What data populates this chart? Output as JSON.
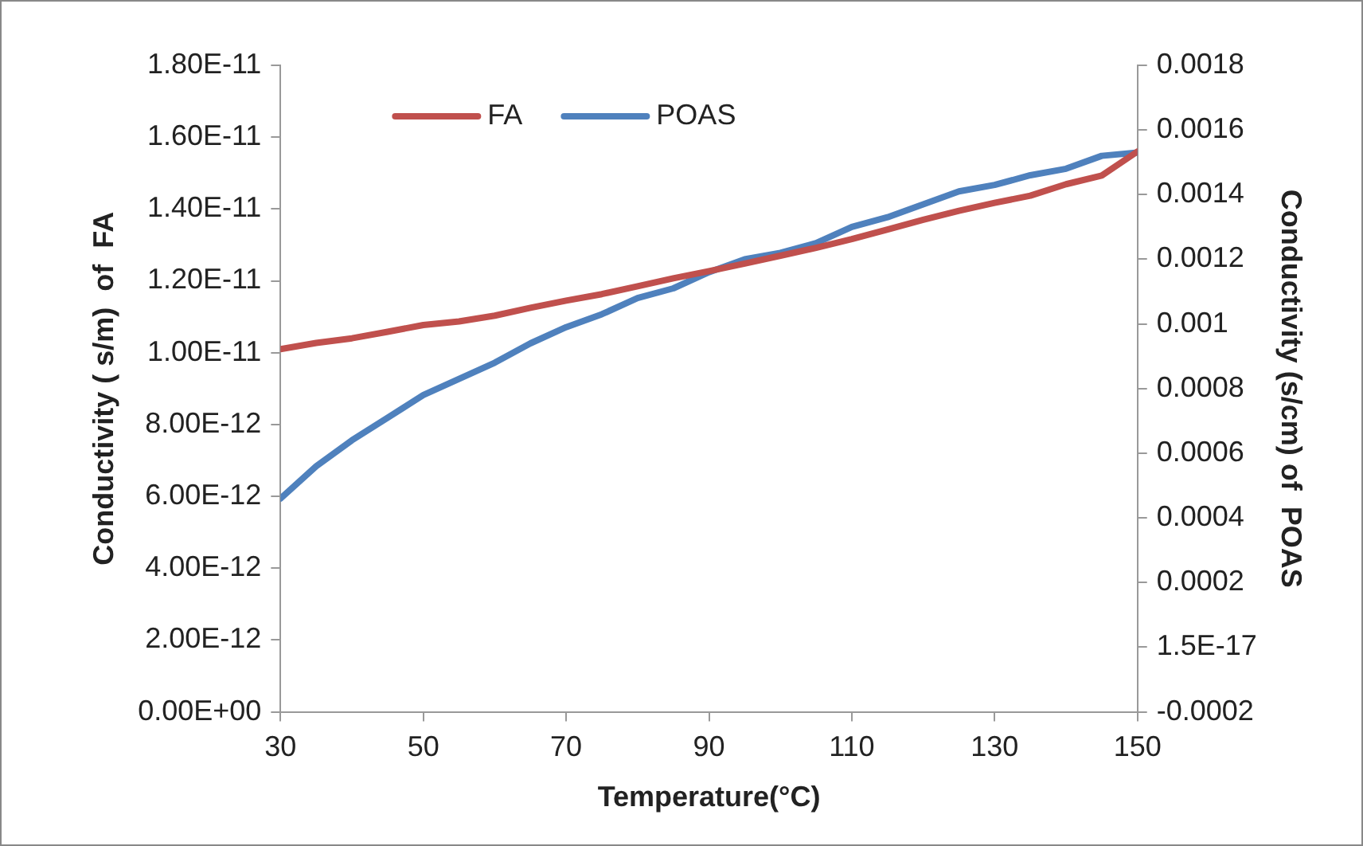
{
  "chart_data": {
    "type": "line",
    "xlabel": "Temperature(°C)",
    "ylabel": "Conductivity ( s/m)  of  FA",
    "y2label": "Conductivity (s/cm) of  POAS",
    "x": [
      30,
      35,
      40,
      45,
      50,
      55,
      60,
      65,
      70,
      75,
      80,
      85,
      90,
      95,
      100,
      105,
      110,
      115,
      120,
      125,
      130,
      135,
      140,
      145,
      150
    ],
    "series": [
      {
        "name": "FA",
        "color": "#c0504d",
        "values": [
          1.01e-11,
          1.027e-11,
          1.04e-11,
          1.058e-11,
          1.077e-11,
          1.087e-11,
          1.103e-11,
          1.125e-11,
          1.145e-11,
          1.163e-11,
          1.185e-11,
          1.207e-11,
          1.227e-11,
          1.248e-11,
          1.27e-11,
          1.292e-11,
          1.316e-11,
          1.343e-11,
          1.37e-11,
          1.395e-11,
          1.417e-11,
          1.437e-11,
          1.469e-11,
          1.493e-11,
          1.56e-11
        ]
      },
      {
        "name": "POAS",
        "color": "#4f81bd",
        "axis": "y2",
        "values": [
          0.00046,
          0.00056,
          0.00064,
          0.00071,
          0.00078,
          0.00083,
          0.00088,
          0.00094,
          0.00099,
          0.00103,
          0.00108,
          0.00111,
          0.00116,
          0.0012,
          0.00122,
          0.00125,
          0.0013,
          0.00133,
          0.00137,
          0.00141,
          0.00143,
          0.00146,
          0.00148,
          0.00152,
          0.00153
        ]
      }
    ],
    "xlim": [
      30,
      150
    ],
    "xticks": [
      30,
      50,
      70,
      90,
      110,
      130,
      150
    ],
    "ylim": [
      0,
      1.8e-11
    ],
    "yticks": [
      {
        "value": 0,
        "label": "0.00E+00"
      },
      {
        "value": 2e-12,
        "label": "2.00E-12"
      },
      {
        "value": 4e-12,
        "label": "4.00E-12"
      },
      {
        "value": 6e-12,
        "label": "6.00E-12"
      },
      {
        "value": 8e-12,
        "label": "8.00E-12"
      },
      {
        "value": 1e-11,
        "label": "1.00E-11"
      },
      {
        "value": 1.2e-11,
        "label": "1.20E-11"
      },
      {
        "value": 1.4e-11,
        "label": "1.40E-11"
      },
      {
        "value": 1.6e-11,
        "label": "1.60E-11"
      },
      {
        "value": 1.8e-11,
        "label": "1.80E-11"
      }
    ],
    "y2lim": [
      -0.0002,
      0.0018
    ],
    "y2ticks": [
      -0.0002,
      {
        "value": 0,
        "label": "1.5E-17"
      },
      0.0002,
      0.0004,
      0.0006,
      0.0008,
      0.001,
      0.0012,
      0.0014,
      0.0016,
      0.0018
    ],
    "grid": false,
    "legend": "top left",
    "marker": "none",
    "line_style": "solid"
  }
}
